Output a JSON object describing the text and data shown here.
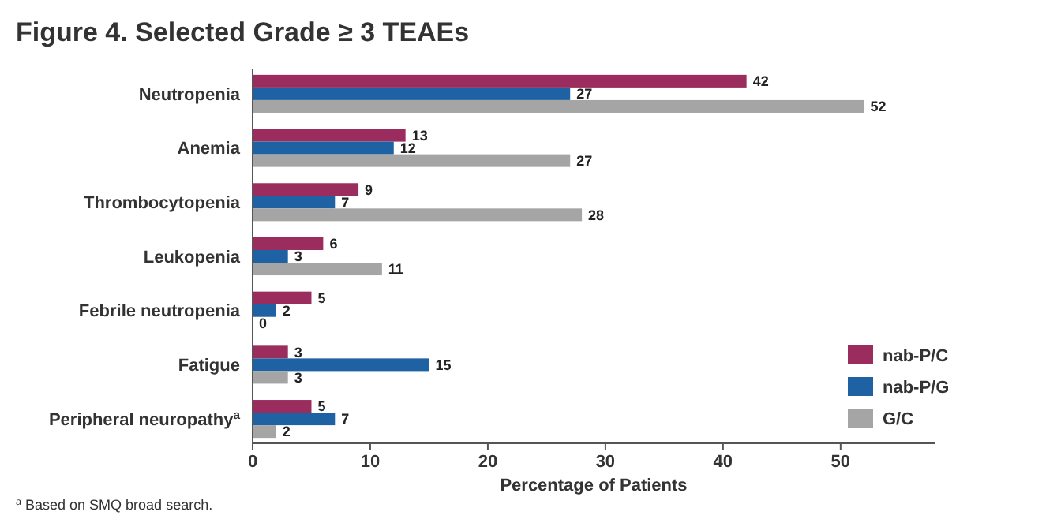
{
  "chart_data": {
    "type": "bar",
    "orientation": "horizontal",
    "title": "Figure 4. Selected Grade ≥ 3 TEAEs",
    "xlabel": "Percentage of Patients",
    "categories": [
      "Neutropenia",
      "Anemia",
      "Thrombocytopenia",
      "Leukopenia",
      "Febrile neutropenia",
      "Fatigue",
      "Peripheral neuropathy$^{a}$"
    ],
    "series": [
      {
        "name": "nab-P/C",
        "color": "#9b2d5e",
        "values": [
          42,
          13,
          9,
          6,
          5,
          3,
          5
        ]
      },
      {
        "name": "nab-P/G",
        "color": "#1f62a3",
        "values": [
          27,
          12,
          7,
          3,
          2,
          15,
          7
        ]
      },
      {
        "name": "G/C",
        "color": "#a5a5a5",
        "values": [
          52,
          27,
          28,
          11,
          0,
          3,
          2
        ]
      }
    ],
    "xlim": [
      0,
      58
    ],
    "xticks": [
      0,
      10,
      20,
      30,
      40,
      50
    ],
    "data_labels": true,
    "legend": "bottom right",
    "grid": false,
    "annotations": [
      "$^{a}$ Based on SMQ broad search."
    ]
  }
}
